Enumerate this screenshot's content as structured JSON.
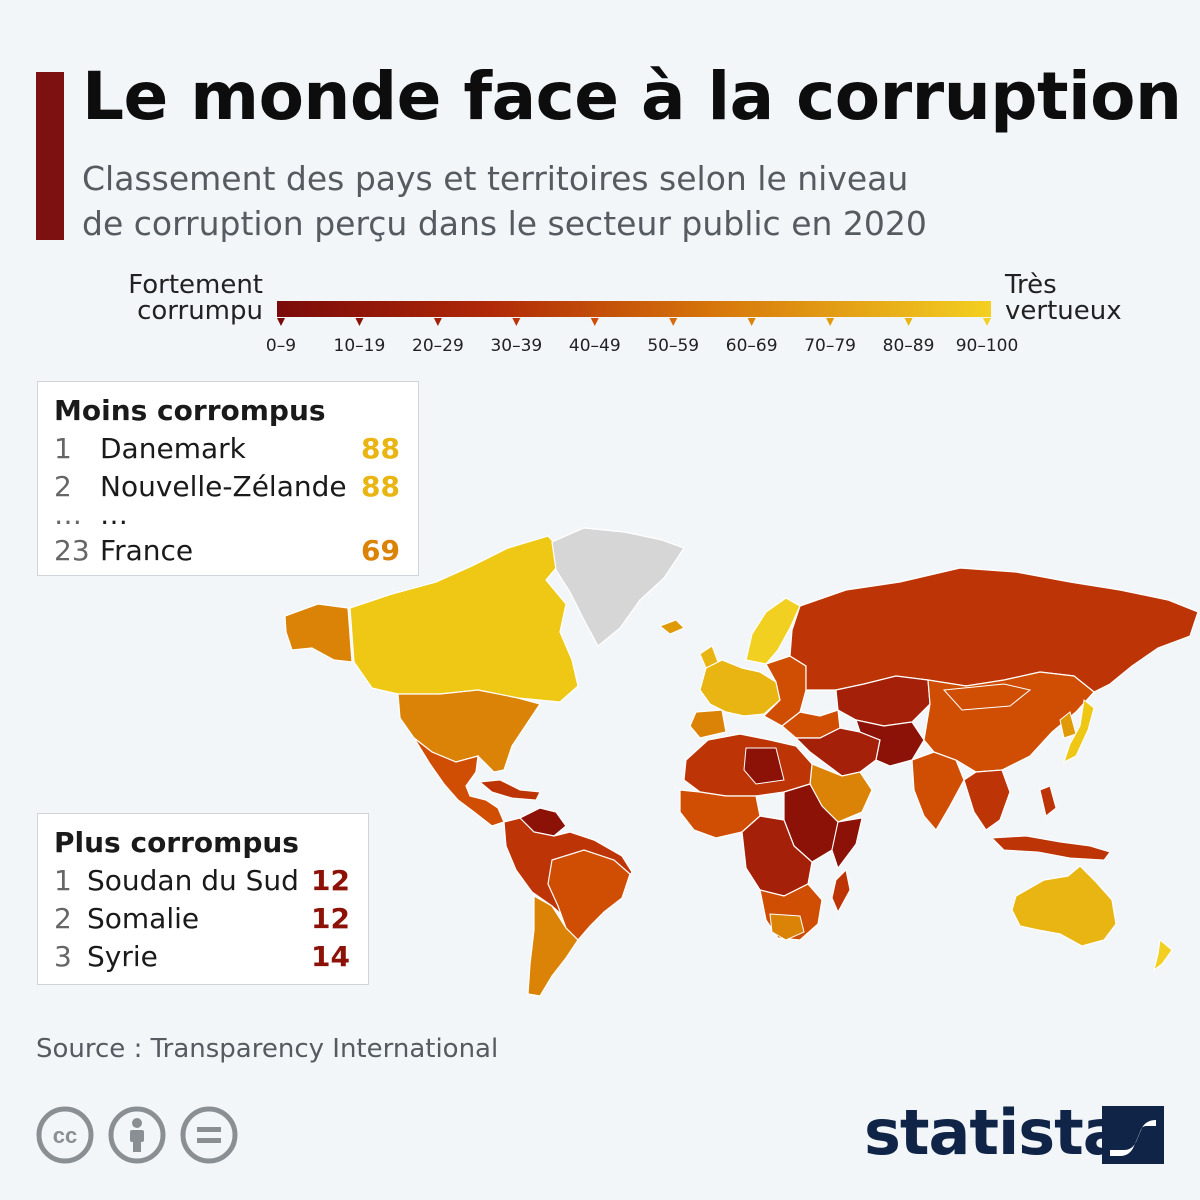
{
  "header": {
    "title": "Le monde face à la corruption",
    "subtitle_line1": "Classement des pays et territoires selon le niveau",
    "subtitle_line2": "de corruption perçu dans le secteur public en 2020"
  },
  "legend": {
    "left_line1": "Fortement",
    "left_line2": "corrumpu",
    "right_line1": "Très",
    "right_line2": "vertueux",
    "classes": [
      "0–9",
      "10–19",
      "20–29",
      "30–39",
      "40–49",
      "50–59",
      "60–69",
      "70–79",
      "80–89",
      "90–100"
    ],
    "colors": [
      "#7a0a0a",
      "#8c1208",
      "#a42008",
      "#bd3406",
      "#cf4e04",
      "#d66a05",
      "#db8306",
      "#e09a08",
      "#e8b512",
      "#f2d022"
    ]
  },
  "top_box": {
    "title": "Moins corrompus",
    "rows": [
      {
        "rank": "1",
        "name": "Danemark",
        "score": "88"
      },
      {
        "rank": "2",
        "name": "Nouvelle-Zélande",
        "score": "88"
      },
      {
        "rank": "…",
        "name": "…",
        "score": ""
      },
      {
        "rank": "23",
        "name": "France",
        "score": "69"
      }
    ]
  },
  "bottom_box": {
    "title": "Plus corrompus",
    "rows": [
      {
        "rank": "1",
        "name": "Soudan du Sud",
        "score": "12"
      },
      {
        "rank": "2",
        "name": "Somalie",
        "score": "12"
      },
      {
        "rank": "3",
        "name": "Syrie",
        "score": "14"
      }
    ]
  },
  "colors": {
    "accent": "#7d1010",
    "top_score": "#e8b512",
    "france_score": "#db8306",
    "bottom_score": "#8c1208",
    "no_data": "#d6d6d6",
    "brand": "#0f2447"
  },
  "footer": {
    "source": "Source : Transparency International",
    "brand": "statista",
    "license_icons": [
      "cc-icon",
      "attribution-icon",
      "no-derivatives-icon"
    ]
  }
}
